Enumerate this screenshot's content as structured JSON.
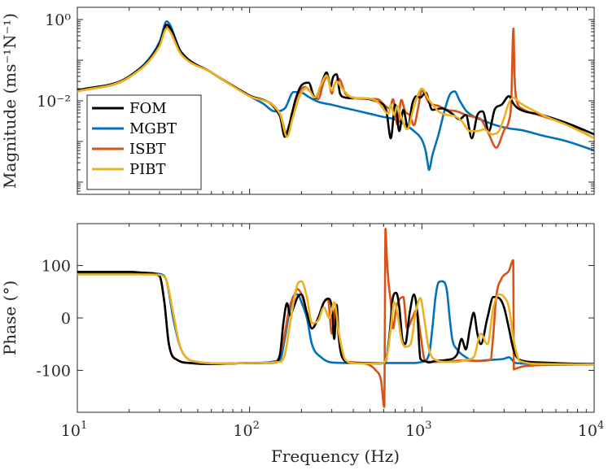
{
  "chart_data": [
    {
      "type": "line",
      "panel": "magnitude",
      "ylabel": "Magnitude (ms⁻¹N⁻¹)",
      "xscale": "log",
      "yscale": "log",
      "xlim": [
        10,
        10000
      ],
      "ylim": [
        5e-05,
        2
      ],
      "yticks": [
        {
          "value": 1,
          "label": "10⁰"
        },
        {
          "value": 0.01,
          "label": "10⁻²"
        }
      ],
      "legend": {
        "position": "left",
        "entries": [
          "FOM",
          "MGBT",
          "ISBT",
          "PIBT"
        ]
      },
      "series": [
        {
          "name": "FOM",
          "color": "#000000",
          "x": [
            10,
            20,
            30,
            33,
            40,
            60,
            100,
            150,
            160,
            170,
            185,
            200,
            220,
            240,
            260,
            280,
            295,
            305,
            320,
            335,
            360,
            400,
            450,
            550,
            620,
            660,
            700,
            740,
            780,
            830,
            880,
            930,
            980,
            1050,
            1150,
            1300,
            1500,
            1650,
            1800,
            1950,
            2100,
            2250,
            2450,
            2650,
            2900,
            3200,
            3400,
            3600,
            5000,
            7000,
            10000
          ],
          "y": [
            0.018,
            0.04,
            0.25,
            0.75,
            0.16,
            0.05,
            0.0135,
            0.0042,
            0.0013,
            0.0026,
            0.011,
            0.024,
            0.028,
            0.0115,
            0.025,
            0.05,
            0.022,
            0.038,
            0.045,
            0.015,
            0.012,
            0.0115,
            0.0115,
            0.0095,
            0.006,
            0.0012,
            0.008,
            0.0018,
            0.006,
            0.0022,
            0.0085,
            0.013,
            0.012,
            0.016,
            0.006,
            0.0065,
            0.0048,
            0.0035,
            0.0045,
            0.0012,
            0.0045,
            0.0055,
            0.0018,
            0.0062,
            0.008,
            0.013,
            0.0085,
            0.0066,
            0.0045,
            0.0028,
            0.0015
          ]
        },
        {
          "name": "MGBT",
          "color": "#0072BD",
          "x": [
            10,
            20,
            30,
            33,
            40,
            60,
            100,
            120,
            140,
            160,
            180,
            200,
            220,
            250,
            300,
            350,
            400,
            500,
            600,
            700,
            800,
            900,
            1000,
            1050,
            1080,
            1100,
            1150,
            1250,
            1350,
            1450,
            1550,
            1650,
            1800,
            2000,
            2300,
            2700,
            3200,
            3800,
            5000,
            7000,
            10000
          ],
          "y": [
            0.018,
            0.04,
            0.28,
            0.9,
            0.16,
            0.05,
            0.013,
            0.0085,
            0.0055,
            0.0065,
            0.0165,
            0.016,
            0.0125,
            0.0095,
            0.008,
            0.0068,
            0.006,
            0.0048,
            0.004,
            0.0035,
            0.0026,
            0.0018,
            0.0011,
            0.0006,
            0.0003,
            0.0002,
            0.00045,
            0.0015,
            0.0055,
            0.014,
            0.017,
            0.0105,
            0.0058,
            0.0041,
            0.0032,
            0.0025,
            0.0021,
            0.0019,
            0.0014,
            0.001,
            0.0006
          ]
        },
        {
          "name": "ISBT",
          "color": "#D95319",
          "x": [
            10,
            20,
            30,
            33,
            40,
            60,
            100,
            150,
            165,
            175,
            190,
            210,
            230,
            250,
            270,
            285,
            300,
            310,
            330,
            360,
            400,
            450,
            550,
            620,
            650,
            680,
            720,
            760,
            800,
            850,
            900,
            950,
            1000,
            1100,
            1250,
            1400,
            1600,
            1800,
            2000,
            2200,
            2450,
            2700,
            3000,
            3200,
            3300,
            3400,
            3450,
            3550,
            3800,
            5000,
            7000,
            10000
          ],
          "y": [
            0.017,
            0.038,
            0.24,
            0.65,
            0.15,
            0.05,
            0.0135,
            0.0048,
            0.0015,
            0.0045,
            0.014,
            0.022,
            0.015,
            0.011,
            0.03,
            0.04,
            0.015,
            0.024,
            0.035,
            0.015,
            0.012,
            0.0112,
            0.011,
            0.0072,
            0.0065,
            0.011,
            0.0026,
            0.0105,
            0.0055,
            0.0044,
            0.0025,
            0.0065,
            0.018,
            0.009,
            0.0075,
            0.006,
            0.0055,
            0.0045,
            0.004,
            0.0035,
            0.0015,
            0.0007,
            0.0019,
            0.0032,
            0.009,
            0.6,
            0.04,
            0.0102,
            0.0065,
            0.0042,
            0.0026,
            0.0012
          ]
        },
        {
          "name": "PIBT",
          "color": "#EDB120",
          "x": [
            10,
            20,
            30,
            33,
            40,
            60,
            100,
            150,
            165,
            178,
            195,
            215,
            240,
            260,
            280,
            300,
            320,
            345,
            380,
            420,
            480,
            560,
            640,
            660,
            690,
            720,
            760,
            820,
            900,
            960,
            1000,
            1100,
            1250,
            1400,
            1550,
            1700,
            1900,
            2100,
            2300,
            2550,
            2800,
            3000,
            3200,
            3400,
            3700,
            5000,
            7000,
            10000
          ],
          "y": [
            0.017,
            0.038,
            0.22,
            0.6,
            0.14,
            0.05,
            0.013,
            0.0048,
            0.0013,
            0.0038,
            0.013,
            0.021,
            0.012,
            0.025,
            0.042,
            0.018,
            0.03,
            0.02,
            0.013,
            0.0115,
            0.0115,
            0.009,
            0.0048,
            0.008,
            0.0045,
            0.0075,
            0.004,
            0.002,
            0.0072,
            0.016,
            0.02,
            0.0105,
            0.0055,
            0.0045,
            0.0042,
            0.0032,
            0.0018,
            0.0018,
            0.002,
            0.0015,
            0.0018,
            0.0038,
            0.009,
            0.012,
            0.009,
            0.0045,
            0.0025,
            0.0012
          ]
        }
      ]
    },
    {
      "type": "line",
      "panel": "phase",
      "xlabel": "Frequency (Hz)",
      "ylabel": "Phase (°)",
      "xscale": "log",
      "xlim": [
        10,
        10000
      ],
      "ylim": [
        -180,
        180
      ],
      "yticks": [
        {
          "value": 100,
          "label": "100"
        },
        {
          "value": 0,
          "label": "0"
        },
        {
          "value": -100,
          "label": "-100"
        }
      ],
      "xticks": [
        {
          "value": 10,
          "base": "10",
          "exp": "1"
        },
        {
          "value": 100,
          "base": "10",
          "exp": "2"
        },
        {
          "value": 1000,
          "base": "10",
          "exp": "3"
        },
        {
          "value": 10000,
          "base": "10",
          "exp": "4"
        }
      ],
      "series": [
        {
          "name": "FOM",
          "color": "#000000",
          "x": [
            10,
            20,
            25,
            30,
            32,
            34,
            38,
            45,
            60,
            100,
            140,
            150,
            157,
            165,
            172,
            180,
            190,
            200,
            215,
            230,
            250,
            270,
            285,
            300,
            310,
            320,
            330,
            345,
            380,
            450,
            550,
            600,
            620,
            650,
            680,
            710,
            740,
            770,
            800,
            850,
            900,
            940,
            980,
            1030,
            1100,
            1200,
            1400,
            1600,
            1700,
            1800,
            1900,
            2000,
            2100,
            2200,
            2400,
            2600,
            2800,
            3000,
            3200,
            3400,
            3700,
            5000,
            7000,
            10000
          ],
          "y": [
            88,
            88,
            86,
            80,
            30,
            -50,
            -80,
            -86,
            -88,
            -86,
            -85,
            -70,
            -10,
            28,
            5,
            20,
            40,
            45,
            10,
            -20,
            0,
            30,
            37,
            20,
            -40,
            25,
            -40,
            -75,
            -85,
            -86,
            -87,
            -86,
            -80,
            -30,
            40,
            48,
            20,
            -40,
            -50,
            10,
            45,
            10,
            -78,
            -82,
            -85,
            -82,
            -80,
            -70,
            -40,
            -60,
            -20,
            10,
            -30,
            -50,
            0,
            40,
            38,
            20,
            -20,
            -60,
            -80,
            -85,
            -87,
            -88
          ]
        },
        {
          "name": "MGBT",
          "color": "#0072BD",
          "x": [
            10,
            20,
            25,
            30,
            33,
            36,
            40,
            50,
            70,
            100,
            150,
            160,
            170,
            180,
            190,
            200,
            215,
            230,
            260,
            300,
            400,
            500,
            600,
            700,
            800,
            900,
            1000,
            1100,
            1150,
            1200,
            1250,
            1300,
            1350,
            1400,
            1450,
            1500,
            1600,
            1800,
            2000,
            2500,
            3000,
            3200,
            3500,
            5000,
            10000
          ],
          "y": [
            86,
            86,
            86,
            84,
            70,
            0,
            -60,
            -84,
            -87,
            -86,
            -80,
            -40,
            10,
            42,
            45,
            30,
            0,
            -50,
            -75,
            -85,
            -86,
            -86,
            -86,
            -86,
            -86,
            -86,
            -84,
            -70,
            -20,
            40,
            68,
            70,
            68,
            50,
            0,
            -40,
            -60,
            -75,
            -82,
            -80,
            -78,
            -75,
            -86,
            -88,
            -88
          ]
        },
        {
          "name": "ISBT",
          "color": "#D95319",
          "x": [
            10,
            20,
            25,
            30,
            32,
            34,
            38,
            45,
            60,
            100,
            140,
            150,
            160,
            170,
            180,
            190,
            200,
            215,
            230,
            250,
            270,
            285,
            300,
            315,
            330,
            345,
            380,
            450,
            540,
            580,
            605,
            615,
            620,
            625,
            640,
            660,
            680,
            710,
            740,
            780,
            820,
            880,
            930,
            980,
            1040,
            1150,
            1400,
            1800,
            2200,
            2500,
            2600,
            2700,
            2900,
            3200,
            3390,
            3420,
            3500,
            3800,
            5000,
            10000
          ],
          "y": [
            88,
            88,
            86,
            80,
            30,
            -50,
            -80,
            -86,
            -88,
            -86,
            -85,
            -70,
            -30,
            20,
            40,
            55,
            45,
            10,
            -20,
            0,
            30,
            35,
            -30,
            20,
            -40,
            -75,
            -84,
            -86,
            -100,
            -120,
            -170,
            170,
            150,
            120,
            70,
            30,
            -20,
            20,
            35,
            40,
            -20,
            0,
            15,
            -30,
            -80,
            -84,
            -83,
            -81,
            -82,
            -80,
            -30,
            40,
            75,
            90,
            110,
            -98,
            -97,
            -93,
            -90,
            -89
          ]
        },
        {
          "name": "PIBT",
          "color": "#EDB120",
          "x": [
            10,
            20,
            25,
            30,
            33,
            36,
            40,
            50,
            70,
            100,
            150,
            160,
            170,
            180,
            190,
            200,
            215,
            230,
            250,
            270,
            290,
            310,
            330,
            360,
            400,
            500,
            600,
            630,
            660,
            690,
            720,
            760,
            800,
            860,
            920,
            980,
            1030,
            1100,
            1200,
            1400,
            1600,
            1800,
            2000,
            2200,
            2400,
            2600,
            2800,
            3000,
            3200,
            3400,
            3700,
            5000,
            10000
          ],
          "y": [
            83,
            83,
            83,
            82,
            70,
            10,
            -60,
            -84,
            -87,
            -86,
            -84,
            -70,
            -20,
            30,
            65,
            70,
            40,
            -10,
            -5,
            20,
            0,
            30,
            -30,
            -80,
            -86,
            -87,
            -86,
            -70,
            -20,
            30,
            10,
            -40,
            -55,
            -50,
            10,
            38,
            0,
            -60,
            -80,
            -84,
            -84,
            -80,
            -75,
            -30,
            -50,
            20,
            45,
            40,
            20,
            -40,
            -82,
            -88,
            -89
          ]
        }
      ]
    }
  ]
}
